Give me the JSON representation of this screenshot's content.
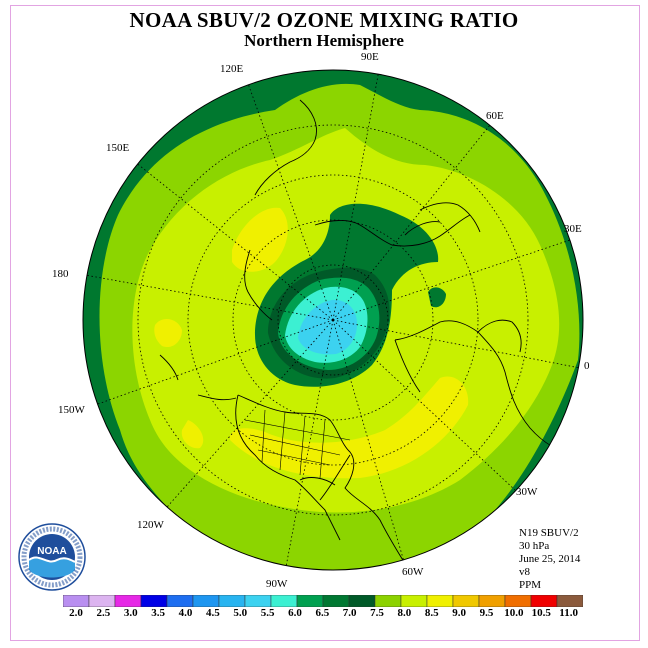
{
  "title": "NOAA SBUV/2 OZONE MIXING RATIO",
  "subtitle": "Northern Hemisphere",
  "longitude_labels": [
    "90E",
    "60E",
    "30E",
    "0",
    "30W",
    "60W",
    "90W",
    "120W",
    "150W",
    "180",
    "150E",
    "120E"
  ],
  "info": {
    "instrument": "N19 SBUV/2",
    "level": "30 hPa",
    "date": "June 25, 2014",
    "version": "v8",
    "units": "PPM"
  },
  "colorbar": {
    "labels": [
      "2.0",
      "2.5",
      "3.0",
      "3.5",
      "4.0",
      "4.5",
      "5.0",
      "5.5",
      "6.0",
      "6.5",
      "7.0",
      "7.5",
      "8.0",
      "8.5",
      "9.0",
      "9.5",
      "10.0",
      "10.5",
      "11.0"
    ],
    "colors": [
      "#b98ff0",
      "#dcb4f0",
      "#e628e6",
      "#0000e6",
      "#1e6ef0",
      "#1e96f0",
      "#28b4f0",
      "#3cd2f0",
      "#3cf0d2",
      "#00a050",
      "#007832",
      "#005a28",
      "#8cd200",
      "#c8f000",
      "#f0f000",
      "#f0c800",
      "#f0a000",
      "#f06e00",
      "#f00000",
      "#8b5a3c"
    ]
  },
  "logo": {
    "text": "NOAA",
    "ring_text": "NATIONAL OCEANIC AND ATMOSPHERIC ADMINISTRATION · U.S. DEPARTMENT OF COMMERCE"
  }
}
